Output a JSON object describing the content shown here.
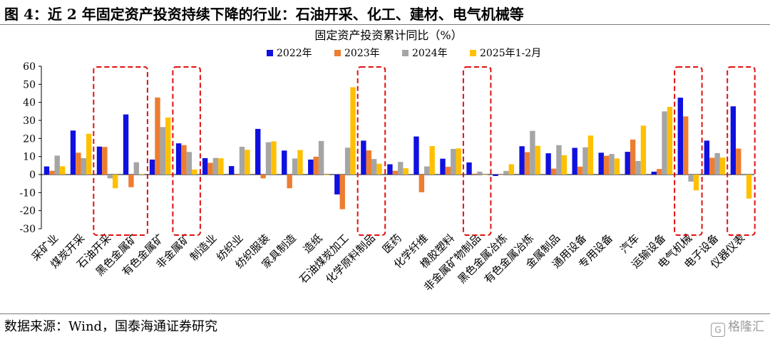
{
  "header": {
    "title": "图 4：近 2 年固定资产投资持续下降的行业：石油开采、化工、建材、电气机械等"
  },
  "footer": {
    "source": "数据来源：Wind，国泰海通证券研究",
    "watermark": "格隆汇",
    "watermark_logo": "G"
  },
  "chart_data": {
    "type": "bar",
    "title": "固定资产投资累计同比（%）",
    "ylim": [
      -30,
      60
    ],
    "yticks": [
      -30,
      -20,
      -10,
      0,
      10,
      20,
      30,
      40,
      50,
      60
    ],
    "grid": false,
    "legend_position": "top",
    "categories": [
      "采矿业",
      "煤炭开采",
      "石油开采",
      "黑色金属矿",
      "有色金属矿",
      "非金属矿",
      "制造业",
      "纺织业",
      "纺织服装",
      "家具制造",
      "造纸",
      "石油煤炭加工",
      "化学原料制品",
      "医药",
      "化学纤维",
      "橡胶塑料",
      "非金属矿物制品",
      "黑色金属冶炼",
      "有色金属冶炼",
      "金属制品",
      "通用设备",
      "专用设备",
      "汽车",
      "运输设备",
      "电气机械",
      "电子设备",
      "仪器仪表"
    ],
    "series": [
      {
        "name": "2022年",
        "color": "#1010e0",
        "values": [
          4.5,
          24.4,
          15.5,
          33.3,
          8.3,
          17.3,
          9.1,
          4.7,
          25.3,
          13.3,
          8.3,
          -11.0,
          18.8,
          5.7,
          21.1,
          8.8,
          6.7,
          -0.8,
          15.7,
          11.8,
          14.8,
          12.1,
          12.6,
          1.6,
          42.6,
          18.8,
          37.8
        ]
      },
      {
        "name": "2023年",
        "color": "#ed7d31",
        "values": [
          2.1,
          12.1,
          15.3,
          -7.0,
          42.7,
          16.3,
          6.5,
          -0.4,
          -2.1,
          -7.6,
          9.9,
          -19.2,
          13.4,
          2.1,
          -9.8,
          4.3,
          0.5,
          0.0,
          12.4,
          3.3,
          4.4,
          10.4,
          19.4,
          3.1,
          32.2,
          9.3,
          14.4
        ]
      },
      {
        "name": "2024年",
        "color": "#a5a5a5",
        "values": [
          10.5,
          9.1,
          -2.1,
          6.8,
          26.3,
          12.5,
          9.2,
          15.4,
          17.9,
          8.9,
          18.6,
          14.9,
          8.6,
          7.0,
          4.5,
          14.2,
          1.6,
          2.0,
          24.2,
          16.3,
          15.1,
          11.4,
          7.5,
          35.0,
          -3.9,
          11.9,
          -0.5
        ]
      },
      {
        "name": "2025年1-2月",
        "color": "#ffc000",
        "values": [
          4.6,
          22.6,
          -7.6,
          0.3,
          31.6,
          2.8,
          9.0,
          13.7,
          18.4,
          13.6,
          -0.3,
          48.4,
          6.0,
          3.5,
          15.8,
          14.5,
          0.0,
          5.7,
          15.9,
          10.7,
          21.6,
          8.9,
          27.1,
          37.5,
          -8.8,
          9.4,
          -13.3
        ]
      }
    ],
    "highlight_groups": [
      [
        "石油开采",
        "黑色金属矿"
      ],
      [
        "非金属矿"
      ],
      [
        "化学原料制品"
      ],
      [
        "非金属矿物制品"
      ],
      [
        "电气机械"
      ],
      [
        "仪器仪表"
      ]
    ]
  }
}
